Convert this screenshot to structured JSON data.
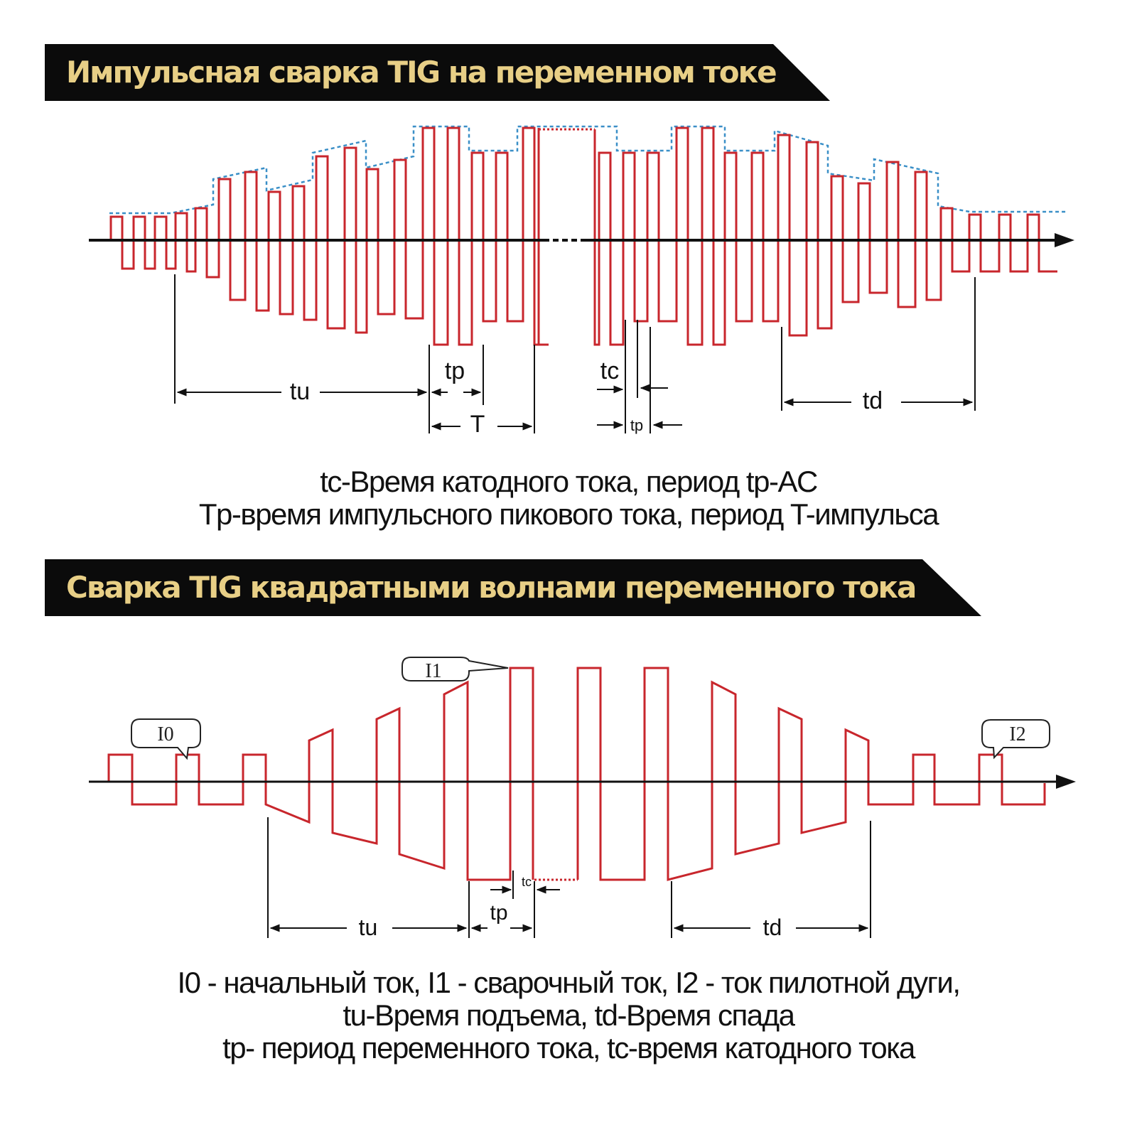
{
  "colors": {
    "banner_bg": "#0b0b0b",
    "banner_text": "#e8cf86",
    "waveform": "#c8262c",
    "envelope": "#3a8fc7",
    "axis": "#111111"
  },
  "section1": {
    "title": "Импульсная сварка TIG на переменном токе",
    "labels": {
      "tu": "tu",
      "tp": "tp",
      "T": "T",
      "tc": "tc",
      "tp_small": "tp",
      "td": "td"
    },
    "caption_lines": [
      "tc-Время катодного тока, период tp-AC",
      "Tp-время импульсного пикового тока, период T-импульса"
    ]
  },
  "section2": {
    "title": "Сварка TIG квадратными волнами переменного тока",
    "labels": {
      "I0": "I0",
      "I1": "I1",
      "I2": "I2",
      "tc": "tc",
      "tp": "tp",
      "tu": "tu",
      "td": "td"
    },
    "caption_lines": [
      "I0 - начальный ток, I1 - сварочный ток, I2 - ток пилотной дуги,",
      "tu-Время подъема, td-Время спада",
      "tp- период переменного тока, tc-время катодного тока"
    ]
  }
}
